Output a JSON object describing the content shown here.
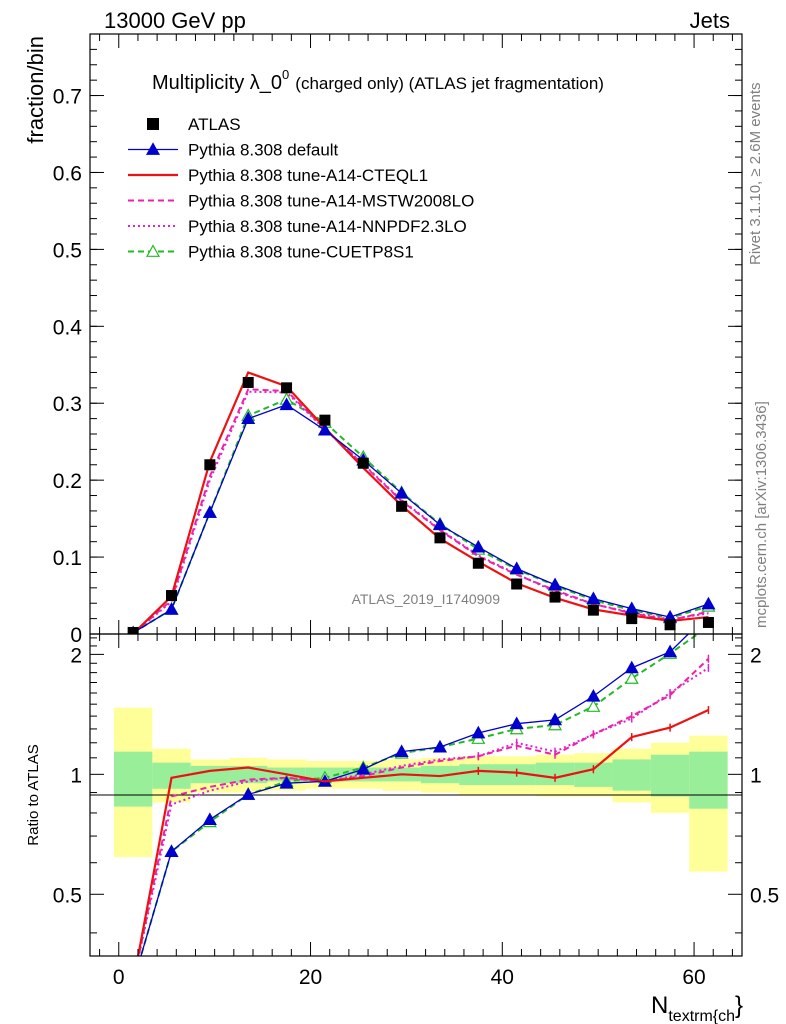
{
  "header": {
    "left": "13000 GeV pp",
    "right": "Jets"
  },
  "side": {
    "rivet": "Rivet 3.1.10, ≥ 2.6M events",
    "mcplots": "mcplots.cern.ch [arXiv:1306.3436]"
  },
  "title": {
    "main": "Multiplicity λ_0",
    "sup": "0",
    "sub": "(charged only) (ATLAS jet fragmentation)"
  },
  "watermark": "ATLAS_2019_I1740909",
  "chart_data": [
    {
      "type": "line",
      "panel": "main",
      "ylabel": "fraction/bin",
      "xlim": [
        -3,
        65
      ],
      "ylim": [
        0,
        0.78
      ],
      "yticks": [
        0,
        0.1,
        0.2,
        0.3,
        0.4,
        0.5,
        0.6,
        0.7
      ],
      "ytick_labels": [
        "0",
        "0.1",
        "0.2",
        "0.3",
        "0.4",
        "0.5",
        "0.6",
        "0.7"
      ],
      "x": [
        1.5,
        5.5,
        9.5,
        13.5,
        17.5,
        21.5,
        25.5,
        29.5,
        33.5,
        37.5,
        41.5,
        45.5,
        49.5,
        53.5,
        57.5,
        61.5
      ],
      "legend": {
        "position": "top-left"
      },
      "series": [
        {
          "key": "atlas",
          "name": "ATLAS",
          "color": "#000000",
          "style": "markers-square",
          "values": [
            0.002,
            0.05,
            0.22,
            0.327,
            0.32,
            0.278,
            0.222,
            0.166,
            0.125,
            0.092,
            0.065,
            0.048,
            0.031,
            0.02,
            0.012,
            0.015
          ]
        },
        {
          "key": "default",
          "name": "Pythia 8.308 default",
          "color": "#0000cc",
          "style": "solid-triangle",
          "values": [
            0.0015,
            0.032,
            0.158,
            0.28,
            0.298,
            0.265,
            0.226,
            0.183,
            0.142,
            0.113,
            0.085,
            0.064,
            0.046,
            0.033,
            0.022,
            0.039
          ]
        },
        {
          "key": "cteql1",
          "name": "Pythia 8.308 tune-A14-CTEQL1",
          "color": "#ee1111",
          "style": "solid",
          "values": [
            0.0002,
            0.049,
            0.224,
            0.34,
            0.322,
            0.268,
            0.216,
            0.167,
            0.124,
            0.094,
            0.066,
            0.047,
            0.032,
            0.024,
            0.017,
            0.022
          ]
        },
        {
          "key": "mstw",
          "name": "Pythia 8.308 tune-A14-MSTW2008LO",
          "color": "#ee22aa",
          "style": "dashed",
          "values": [
            0.0004,
            0.044,
            0.205,
            0.318,
            0.316,
            0.267,
            0.22,
            0.173,
            0.135,
            0.101,
            0.077,
            0.057,
            0.039,
            0.027,
            0.018,
            0.029
          ]
        },
        {
          "key": "nnpdf",
          "name": "Pythia 8.308 tune-A14-NNPDF2.3LO",
          "color": "#dd22dd",
          "style": "dotted",
          "values": [
            0.0005,
            0.042,
            0.2,
            0.315,
            0.314,
            0.266,
            0.221,
            0.174,
            0.136,
            0.102,
            0.078,
            0.055,
            0.039,
            0.028,
            0.019,
            0.027
          ]
        },
        {
          "key": "cuetp",
          "name": "Pythia 8.308 tune-CUETP8S1",
          "color": "#22bb22",
          "style": "dashed-open-triangle",
          "values": [
            0.0015,
            0.032,
            0.158,
            0.284,
            0.305,
            0.275,
            0.23,
            0.184,
            0.143,
            0.11,
            0.084,
            0.063,
            0.044,
            0.031,
            0.021,
            0.036
          ]
        }
      ]
    },
    {
      "type": "line",
      "panel": "ratio",
      "ylabel": "Ratio to ATLAS",
      "xlabel": "N",
      "xlabel_sub": "textrm{ch",
      "xlabel_tail": "}",
      "xlim": [
        -3,
        65
      ],
      "ylim": [
        0.35,
        2.25
      ],
      "yticks": [
        0.5,
        1,
        2
      ],
      "ytick_labels": [
        "0.5",
        "1",
        "2"
      ],
      "xticks": [
        0,
        20,
        40,
        60
      ],
      "xtick_labels": [
        "0",
        "20",
        "40",
        "60"
      ],
      "x": [
        1.5,
        5.5,
        9.5,
        13.5,
        17.5,
        21.5,
        25.5,
        29.5,
        33.5,
        37.5,
        41.5,
        45.5,
        49.5,
        53.5,
        57.5,
        61.5
      ],
      "bin_edges": [
        -0.5,
        3.5,
        7.5,
        11.5,
        15.5,
        19.5,
        23.5,
        27.5,
        31.5,
        35.5,
        39.5,
        43.5,
        47.5,
        51.5,
        55.5,
        59.5,
        63.5
      ],
      "band_outer_color": "#ffff99",
      "band_inner_color": "#99ee99",
      "band_outer": [
        [
          0.62,
          1.47
        ],
        [
          0.85,
          1.16
        ],
        [
          0.9,
          1.09
        ],
        [
          0.9,
          1.1
        ],
        [
          0.91,
          1.09
        ],
        [
          0.92,
          1.08
        ],
        [
          0.92,
          1.08
        ],
        [
          0.91,
          1.09
        ],
        [
          0.9,
          1.1
        ],
        [
          0.89,
          1.11
        ],
        [
          0.89,
          1.11
        ],
        [
          0.88,
          1.12
        ],
        [
          0.88,
          1.13
        ],
        [
          0.85,
          1.16
        ],
        [
          0.8,
          1.2
        ],
        [
          0.57,
          1.25
        ]
      ],
      "band_inner": [
        [
          0.83,
          1.14
        ],
        [
          0.92,
          1.07
        ],
        [
          0.95,
          1.05
        ],
        [
          0.95,
          1.05
        ],
        [
          0.96,
          1.04
        ],
        [
          0.96,
          1.04
        ],
        [
          0.96,
          1.04
        ],
        [
          0.96,
          1.04
        ],
        [
          0.95,
          1.05
        ],
        [
          0.94,
          1.06
        ],
        [
          0.94,
          1.06
        ],
        [
          0.94,
          1.07
        ],
        [
          0.93,
          1.07
        ],
        [
          0.91,
          1.09
        ],
        [
          0.88,
          1.12
        ],
        [
          0.82,
          1.14
        ]
      ],
      "series": [
        {
          "key": "default",
          "color": "#0000cc",
          "style": "solid-triangle",
          "values": [
            0.3,
            0.64,
            0.77,
            0.89,
            0.95,
            0.96,
            1.03,
            1.14,
            1.17,
            1.27,
            1.34,
            1.37,
            1.57,
            1.85,
            2.03,
            2.52
          ]
        },
        {
          "key": "cteql1",
          "color": "#ee1111",
          "style": "solid",
          "values": [
            0.3,
            0.98,
            1.02,
            1.04,
            1.0,
            0.96,
            0.98,
            1.0,
            0.99,
            1.02,
            1.01,
            0.98,
            1.03,
            1.24,
            1.31,
            1.45
          ]
        },
        {
          "key": "mstw",
          "color": "#ee22aa",
          "style": "dashed",
          "values": [
            0.3,
            0.88,
            0.93,
            0.97,
            0.98,
            0.96,
            0.99,
            1.04,
            1.08,
            1.11,
            1.18,
            1.12,
            1.26,
            1.4,
            1.58,
            1.95
          ]
        },
        {
          "key": "nnpdf",
          "color": "#dd22dd",
          "style": "dotted",
          "values": [
            0.3,
            0.84,
            0.91,
            0.96,
            0.98,
            0.96,
            1.0,
            1.05,
            1.09,
            1.11,
            1.2,
            1.14,
            1.26,
            1.38,
            1.6,
            1.85
          ]
        },
        {
          "key": "cuetp",
          "color": "#22bb22",
          "style": "dashed-open-triangle",
          "values": [
            0.3,
            0.64,
            0.76,
            0.89,
            0.96,
            0.98,
            1.04,
            1.13,
            1.17,
            1.23,
            1.3,
            1.33,
            1.48,
            1.74,
            2.01,
            2.35
          ]
        }
      ]
    }
  ]
}
